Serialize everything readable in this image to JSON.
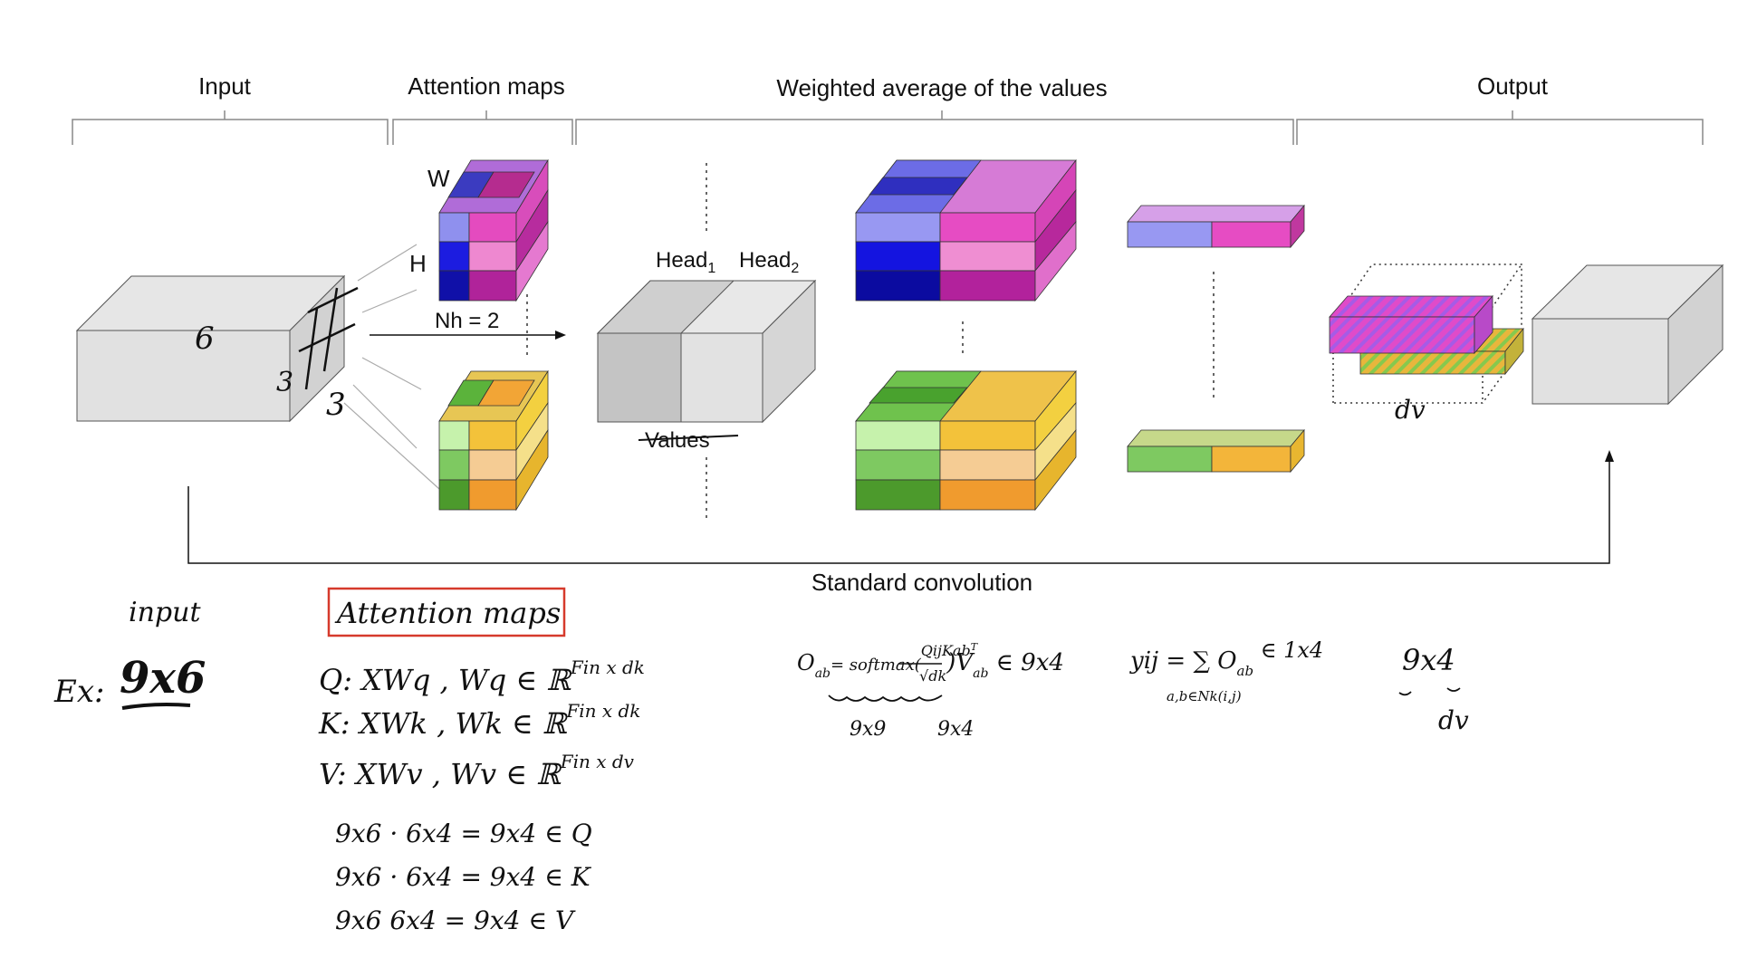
{
  "sections": {
    "input": "Input",
    "attention": "Attention maps",
    "weighted": "Weighted average of the values",
    "output": "Output"
  },
  "diagram": {
    "input_w": "6",
    "input_h": "3",
    "input_d": "3",
    "label_w": "W",
    "label_h": "H",
    "nh": "Nh = 2",
    "head1": "Head",
    "head1_sub": "1",
    "head2": "Head",
    "head2_sub": "2",
    "values": "Values",
    "dv": "dv",
    "standard_conv": "Standard convolution"
  },
  "notes": {
    "input_title": "input",
    "ex": "Ex:",
    "ex_val": "9x6",
    "attn_title": "Attention maps",
    "q_line": "Q: XWq ,  Wq ∈ ℝ",
    "q_sup": "Fin x dk",
    "k_line": "K: XWk ,  Wk ∈ ℝ",
    "k_sup": "Fin x dk",
    "v_line": "V: XWv ,  Wv ∈ ℝ",
    "v_sup": "Fin x dv",
    "calc1": "9x6 · 6x4  = 9x4  ∈ Q",
    "calc2": "9x6 · 6x4  = 9x4  ∈ K",
    "calc3": "9x6   6x4  = 9x4  ∈ V",
    "oab": "O",
    "oab_sub": "ab",
    "softmax": "= softmax(",
    "frac_num": "QijKab",
    "frac_num_sup": "T",
    "frac_den": "√dk",
    "softmax_close": ")V",
    "v_sub": "ab",
    "softmax_tail": " ∈ 9x4",
    "dim_a": "9x9",
    "dim_b": "9x4",
    "yij": "yij = ∑ O",
    "yij_sub": "ab",
    "yij_tail": " ∈ 1x4",
    "yij_under": "a,b∈Nk(i,j)",
    "out_dim": "9x4",
    "out_dv": "dv"
  }
}
